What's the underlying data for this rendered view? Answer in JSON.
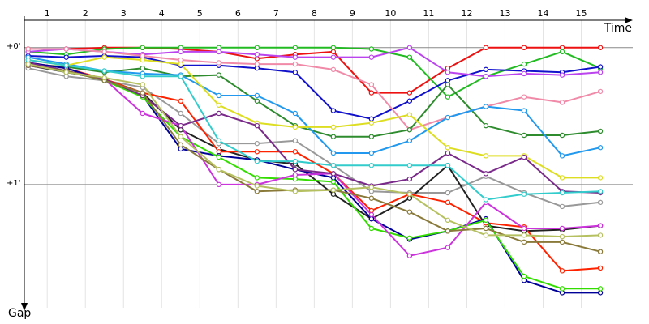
{
  "chart_data": {
    "type": "line",
    "x_label": "Time",
    "y_label": "Gap",
    "y_inverted": true,
    "grid": true,
    "xlim": [
      -0.1,
      15.85
    ],
    "ylim": [
      -0.2,
      1.9
    ],
    "xticks": [
      {
        "value": 0.5,
        "label": "1"
      },
      {
        "value": 1.5,
        "label": "2"
      },
      {
        "value": 2.5,
        "label": "3"
      },
      {
        "value": 3.5,
        "label": "4"
      },
      {
        "value": 4.5,
        "label": "5"
      },
      {
        "value": 5.5,
        "label": "6"
      },
      {
        "value": 6.5,
        "label": "7"
      },
      {
        "value": 7.5,
        "label": "8"
      },
      {
        "value": 8.5,
        "label": "9"
      },
      {
        "value": 9.5,
        "label": "10"
      },
      {
        "value": 10.5,
        "label": "11"
      },
      {
        "value": 11.5,
        "label": "12"
      },
      {
        "value": 12.5,
        "label": "13"
      },
      {
        "value": 13.5,
        "label": "14"
      },
      {
        "value": 14.5,
        "label": "15"
      }
    ],
    "yticks": [
      {
        "value": 0,
        "label": "+0'"
      },
      {
        "value": 1,
        "label": "+1'"
      }
    ],
    "x": [
      0,
      1,
      2,
      3,
      4,
      5,
      6,
      7,
      8,
      9,
      10,
      11,
      12,
      13,
      14,
      15
    ],
    "series": [
      {
        "color": "#ee1111",
        "values": [
          0.01,
          0.01,
          0,
          0,
          0.01,
          0.03,
          0.08,
          0.05,
          0.03,
          0.33,
          0.33,
          0.15,
          0,
          0,
          0,
          0
        ]
      },
      {
        "color": "#22bb22",
        "values": [
          0.03,
          0.05,
          0.01,
          0,
          0,
          0,
          0,
          0,
          0,
          0.01,
          0.07,
          0.36,
          0.21,
          0.12,
          0.03,
          0.15
        ]
      },
      {
        "color": "#1111cc",
        "values": [
          0.06,
          0.07,
          0.06,
          0.07,
          0.13,
          0.13,
          0.15,
          0.18,
          0.46,
          0.52,
          0.39,
          0.24,
          0.16,
          0.17,
          0.18,
          0.14
        ]
      },
      {
        "color": "#bb44ee",
        "values": [
          0.03,
          0.01,
          0.03,
          0.05,
          0.03,
          0.03,
          0.05,
          0.07,
          0.07,
          0.07,
          0,
          0.18,
          0.21,
          0.19,
          0.2,
          0.18
        ]
      },
      {
        "color": "#f08aa8",
        "values": [
          0.01,
          0.01,
          0.03,
          0.06,
          0.09,
          0.11,
          0.12,
          0.12,
          0.16,
          0.27,
          0.6,
          0.51,
          0.43,
          0.36,
          0.4,
          0.32
        ]
      },
      {
        "color": "#2e8b2e",
        "values": [
          0.12,
          0.14,
          0.18,
          0.15,
          0.21,
          0.2,
          0.39,
          0.57,
          0.65,
          0.65,
          0.6,
          0.27,
          0.57,
          0.64,
          0.64,
          0.61
        ]
      },
      {
        "color": "#2299ee",
        "values": [
          0.07,
          0.12,
          0.17,
          0.19,
          0.2,
          0.35,
          0.35,
          0.48,
          0.77,
          0.77,
          0.68,
          0.51,
          0.43,
          0.46,
          0.79,
          0.73
        ]
      },
      {
        "color": "#dddd22",
        "values": [
          0.09,
          0.13,
          0.07,
          0.09,
          0.12,
          0.42,
          0.55,
          0.58,
          0.58,
          0.55,
          0.49,
          0.73,
          0.79,
          0.79,
          0.95,
          0.95
        ]
      },
      {
        "color": "#999999",
        "values": [
          0.15,
          0.21,
          0.24,
          0.29,
          0.48,
          0.7,
          0.7,
          0.68,
          0.86,
          1.05,
          1.06,
          1.06,
          0.94,
          1.06,
          1.16,
          1.13
        ]
      },
      {
        "color": "#222222",
        "values": [
          0.13,
          0.18,
          0.23,
          0.33,
          0.6,
          0.74,
          0.82,
          0.85,
          1.07,
          1.25,
          1.1,
          0.86,
          1.3,
          1.34,
          1.33,
          1.3
        ]
      },
      {
        "color": "#ff2200",
        "values": [
          0.11,
          0.15,
          0.23,
          0.33,
          0.39,
          0.76,
          0.76,
          0.76,
          0.92,
          1.19,
          1.07,
          1.13,
          1.28,
          1.31,
          1.63,
          1.61
        ]
      },
      {
        "color": "#000099",
        "values": [
          0.11,
          0.15,
          0.24,
          0.35,
          0.74,
          0.79,
          0.82,
          0.89,
          0.95,
          1.25,
          1.4,
          1.34,
          1.25,
          1.7,
          1.79,
          1.79
        ]
      },
      {
        "color": "#33dd00",
        "values": [
          0.12,
          0.17,
          0.24,
          0.36,
          0.65,
          0.8,
          0.95,
          0.96,
          0.98,
          1.32,
          1.39,
          1.34,
          1.26,
          1.67,
          1.76,
          1.76
        ]
      },
      {
        "color": "#cc33dd",
        "values": [
          0.13,
          0.17,
          0.23,
          0.48,
          0.57,
          1.0,
          1.0,
          0.93,
          0.92,
          1.22,
          1.52,
          1.46,
          1.13,
          1.32,
          1.32,
          1.3
        ]
      },
      {
        "color": "#7a2a8a",
        "values": [
          0.11,
          0.17,
          0.23,
          0.35,
          0.57,
          0.48,
          0.57,
          0.89,
          0.92,
          1.01,
          0.96,
          0.77,
          0.92,
          0.8,
          1.05,
          1.06
        ]
      },
      {
        "color": "#8a7a3a",
        "values": [
          0.13,
          0.17,
          0.24,
          0.33,
          0.71,
          0.89,
          1.05,
          1.04,
          1.04,
          1.1,
          1.2,
          1.34,
          1.32,
          1.42,
          1.42,
          1.49
        ]
      },
      {
        "color": "#33cccc",
        "values": [
          0.09,
          0.13,
          0.17,
          0.21,
          0.21,
          0.68,
          0.83,
          0.83,
          0.86,
          0.86,
          0.86,
          0.86,
          1.11,
          1.07,
          1.06,
          1.05
        ]
      },
      {
        "color": "#b5c060",
        "values": [
          0.12,
          0.18,
          0.22,
          0.27,
          0.65,
          0.89,
          1.01,
          1.05,
          1.04,
          1.02,
          1.07,
          1.26,
          1.37,
          1.37,
          1.38,
          1.37
        ]
      }
    ]
  }
}
